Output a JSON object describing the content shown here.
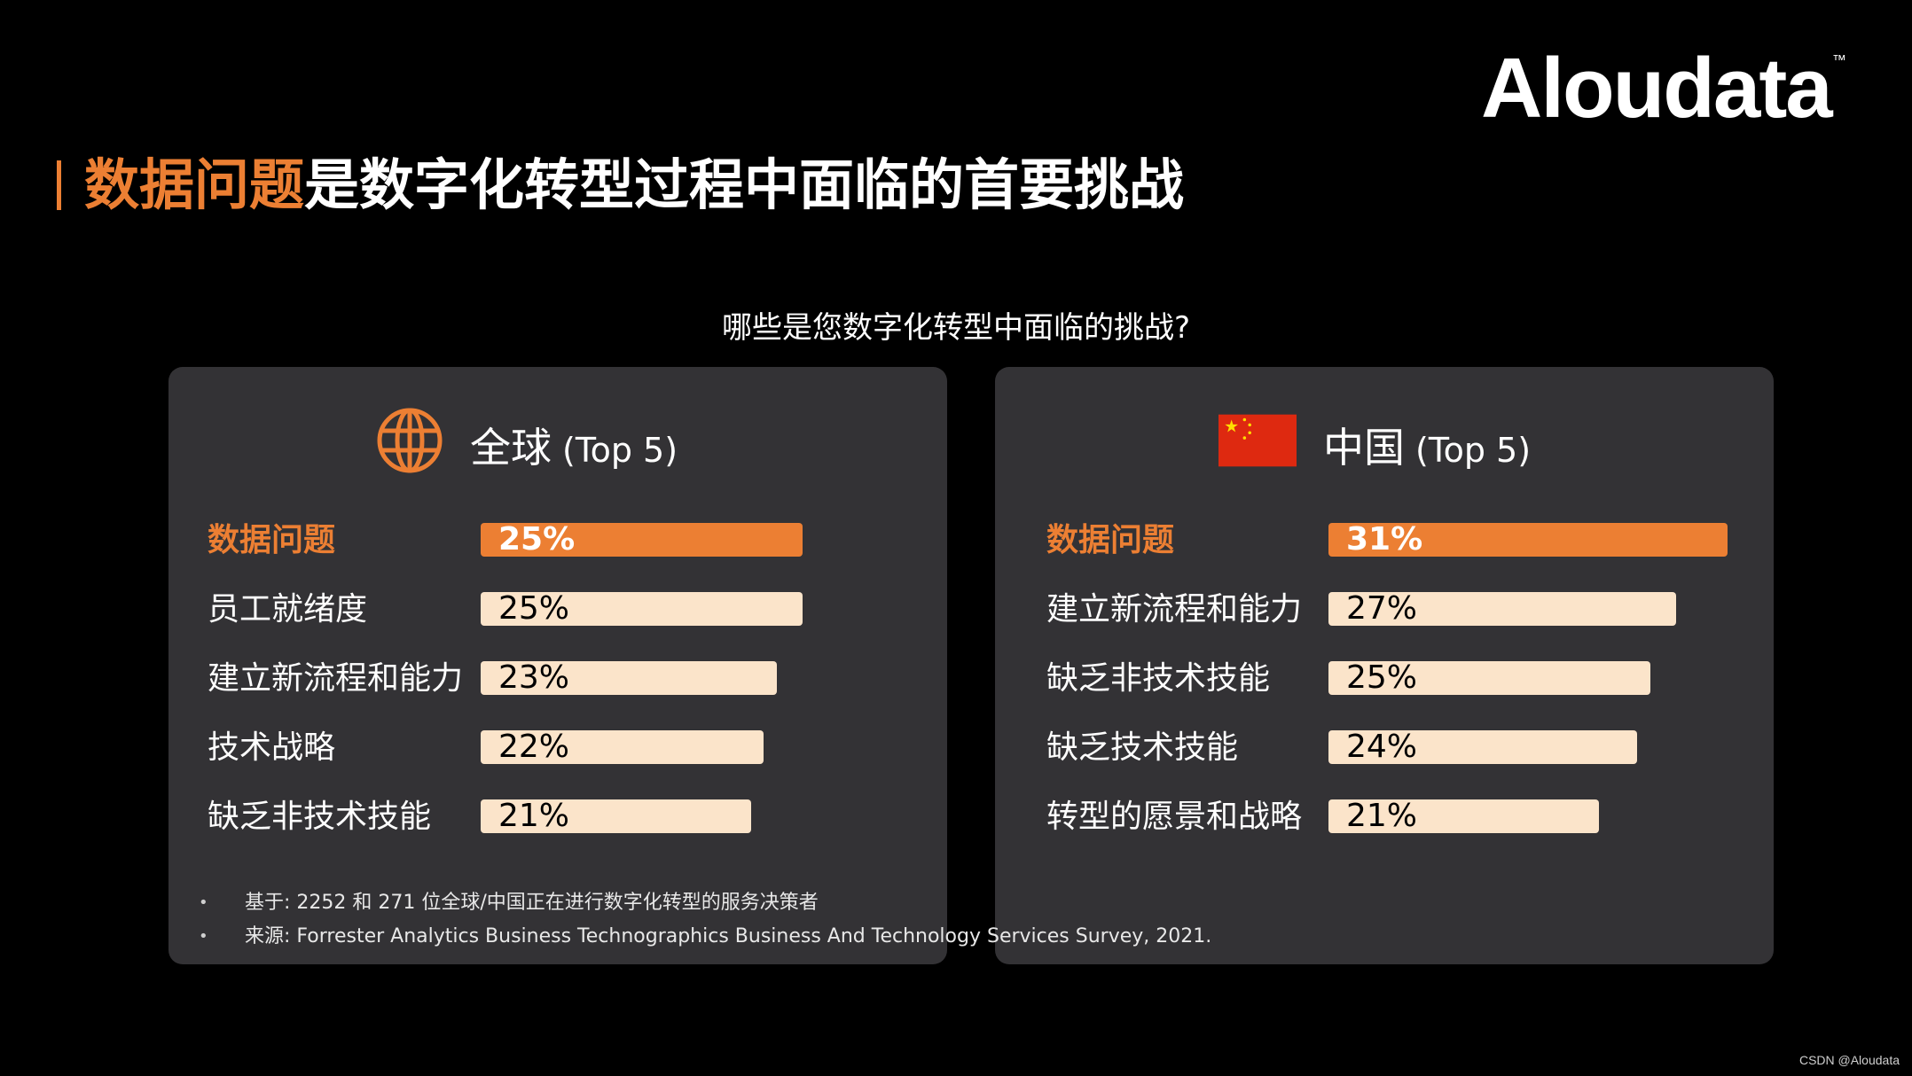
{
  "brand": {
    "logo_text": "Aloudata",
    "tm": "™"
  },
  "header": {
    "title_highlight": "数据问题",
    "title_rest": "是数字化转型过程中面临的首要挑战"
  },
  "question": "哪些是您数字化转型中面临的挑战?",
  "colors": {
    "accent": "#ec7f33",
    "bar_light": "#fbe4ca",
    "panel_bg": "#333235",
    "flag_red": "#de2910",
    "flag_yellow": "#ffde00"
  },
  "chart_data": [
    {
      "type": "bar",
      "orientation": "horizontal",
      "title": "全球",
      "subtitle": "(Top 5)",
      "icon": "globe-icon",
      "categories": [
        "数据问题",
        "员工就绪度",
        "建立新流程和能力",
        "技术战略",
        "缺乏非技术技能"
      ],
      "values": [
        25,
        25,
        23,
        22,
        21
      ],
      "labels": [
        "25%",
        "25%",
        "23%",
        "22%",
        "21%"
      ],
      "unit": "%",
      "xlim": [
        0,
        32
      ]
    },
    {
      "type": "bar",
      "orientation": "horizontal",
      "title": "中国",
      "subtitle": "(Top 5)",
      "icon": "china-flag-icon",
      "categories": [
        "数据问题",
        "建立新流程和能力",
        "缺乏非技术技能",
        "缺乏技术技能",
        "转型的愿景和战略"
      ],
      "values": [
        31,
        27,
        25,
        24,
        21
      ],
      "labels": [
        "31%",
        "27%",
        "25%",
        "24%",
        "21%"
      ],
      "unit": "%",
      "xlim": [
        0,
        32
      ]
    }
  ],
  "notes": [
    "基于: 2252 和 271 位全球/中国正在进行数字化转型的服务决策者",
    "来源: Forrester Analytics Business Technographics Business And Technology Services Survey, 2021."
  ],
  "credit": "CSDN @Aloudata"
}
